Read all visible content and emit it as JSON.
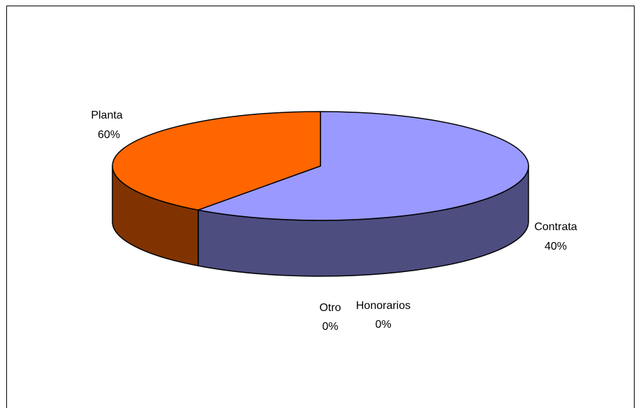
{
  "chart_data": {
    "type": "pie",
    "three_d": true,
    "slices": [
      {
        "label": "Planta",
        "value": 60,
        "percent_label": "60%",
        "color": "#9999FF",
        "side_color": "#4D4D80"
      },
      {
        "label": "Contrata",
        "value": 40,
        "percent_label": "40%",
        "color": "#FF6600",
        "side_color": "#803300"
      },
      {
        "label": "Honorarios",
        "value": 0,
        "percent_label": "0%",
        "color": "#FFFFCC",
        "side_color": "#808066"
      },
      {
        "label": "Otro",
        "value": 0,
        "percent_label": "0%",
        "color": "#CCFFFF",
        "side_color": "#668080"
      }
    ],
    "legend": "none",
    "border_color": "#000000"
  }
}
